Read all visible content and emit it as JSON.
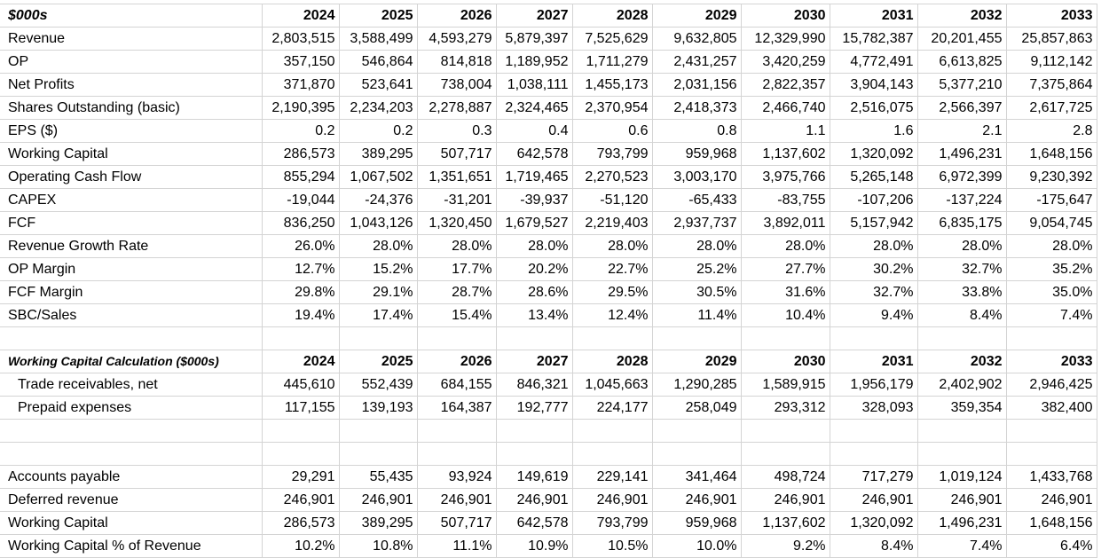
{
  "summary": {
    "header": {
      "label": "$000s",
      "years": [
        "2024",
        "2025",
        "2026",
        "2027",
        "2028",
        "2029",
        "2030",
        "2031",
        "2032",
        "2033"
      ]
    },
    "rows": [
      {
        "label": "Revenue",
        "values": [
          "2,803,515",
          "3,588,499",
          "4,593,279",
          "5,879,397",
          "7,525,629",
          "9,632,805",
          "12,329,990",
          "15,782,387",
          "20,201,455",
          "25,857,863"
        ]
      },
      {
        "label": "OP",
        "values": [
          "357,150",
          "546,864",
          "814,818",
          "1,189,952",
          "1,711,279",
          "2,431,257",
          "3,420,259",
          "4,772,491",
          "6,613,825",
          "9,112,142"
        ]
      },
      {
        "label": "Net Profits",
        "values": [
          "371,870",
          "523,641",
          "738,004",
          "1,038,111",
          "1,455,173",
          "2,031,156",
          "2,822,357",
          "3,904,143",
          "5,377,210",
          "7,375,864"
        ]
      },
      {
        "label": "Shares Outstanding (basic)",
        "values": [
          "2,190,395",
          "2,234,203",
          "2,278,887",
          "2,324,465",
          "2,370,954",
          "2,418,373",
          "2,466,740",
          "2,516,075",
          "2,566,397",
          "2,617,725"
        ]
      },
      {
        "label": "EPS ($)",
        "values": [
          "0.2",
          "0.2",
          "0.3",
          "0.4",
          "0.6",
          "0.8",
          "1.1",
          "1.6",
          "2.1",
          "2.8"
        ]
      },
      {
        "label": "Working Capital",
        "values": [
          "286,573",
          "389,295",
          "507,717",
          "642,578",
          "793,799",
          "959,968",
          "1,137,602",
          "1,320,092",
          "1,496,231",
          "1,648,156"
        ]
      },
      {
        "label": "Operating Cash Flow",
        "values": [
          "855,294",
          "1,067,502",
          "1,351,651",
          "1,719,465",
          "2,270,523",
          "3,003,170",
          "3,975,766",
          "5,265,148",
          "6,972,399",
          "9,230,392"
        ]
      },
      {
        "label": "CAPEX",
        "values": [
          "-19,044",
          "-24,376",
          "-31,201",
          "-39,937",
          "-51,120",
          "-65,433",
          "-83,755",
          "-107,206",
          "-137,224",
          "-175,647"
        ]
      },
      {
        "label": "FCF",
        "values": [
          "836,250",
          "1,043,126",
          "1,320,450",
          "1,679,527",
          "2,219,403",
          "2,937,737",
          "3,892,011",
          "5,157,942",
          "6,835,175",
          "9,054,745"
        ]
      },
      {
        "label": "Revenue Growth Rate",
        "values": [
          "26.0%",
          "28.0%",
          "28.0%",
          "28.0%",
          "28.0%",
          "28.0%",
          "28.0%",
          "28.0%",
          "28.0%",
          "28.0%"
        ]
      },
      {
        "label": "OP Margin",
        "values": [
          "12.7%",
          "15.2%",
          "17.7%",
          "20.2%",
          "22.7%",
          "25.2%",
          "27.7%",
          "30.2%",
          "32.7%",
          "35.2%"
        ]
      },
      {
        "label": "FCF Margin",
        "values": [
          "29.8%",
          "29.1%",
          "28.7%",
          "28.6%",
          "29.5%",
          "30.5%",
          "31.6%",
          "32.7%",
          "33.8%",
          "35.0%"
        ]
      },
      {
        "label": "SBC/Sales",
        "values": [
          "19.4%",
          "17.4%",
          "15.4%",
          "13.4%",
          "12.4%",
          "11.4%",
          "10.4%",
          "9.4%",
          "8.4%",
          "7.4%"
        ]
      }
    ]
  },
  "working_capital": {
    "header": {
      "label": "Working Capital Calculation ($000s)",
      "years": [
        "2024",
        "2025",
        "2026",
        "2027",
        "2028",
        "2029",
        "2030",
        "2031",
        "2032",
        "2033"
      ]
    },
    "assets": [
      {
        "label": "Trade receivables, net",
        "values": [
          "445,610",
          "552,439",
          "684,155",
          "846,321",
          "1,045,663",
          "1,290,285",
          "1,589,915",
          "1,956,179",
          "2,402,902",
          "2,946,425"
        ]
      },
      {
        "label": "Prepaid expenses",
        "values": [
          "117,155",
          "139,193",
          "164,387",
          "192,777",
          "224,177",
          "258,049",
          "293,312",
          "328,093",
          "359,354",
          "382,400"
        ]
      }
    ],
    "liabilities": [
      {
        "label": "Accounts payable",
        "values": [
          "29,291",
          "55,435",
          "93,924",
          "149,619",
          "229,141",
          "341,464",
          "498,724",
          "717,279",
          "1,019,124",
          "1,433,768"
        ]
      },
      {
        "label": "Deferred revenue",
        "values": [
          "246,901",
          "246,901",
          "246,901",
          "246,901",
          "246,901",
          "246,901",
          "246,901",
          "246,901",
          "246,901",
          "246,901"
        ]
      },
      {
        "label": "Working Capital",
        "values": [
          "286,573",
          "389,295",
          "507,717",
          "642,578",
          "793,799",
          "959,968",
          "1,137,602",
          "1,320,092",
          "1,496,231",
          "1,648,156"
        ]
      },
      {
        "label": "Working Capital % of Revenue",
        "values": [
          "10.2%",
          "10.8%",
          "11.1%",
          "10.9%",
          "10.5%",
          "10.0%",
          "9.2%",
          "8.4%",
          "7.4%",
          "6.4%"
        ]
      }
    ]
  }
}
